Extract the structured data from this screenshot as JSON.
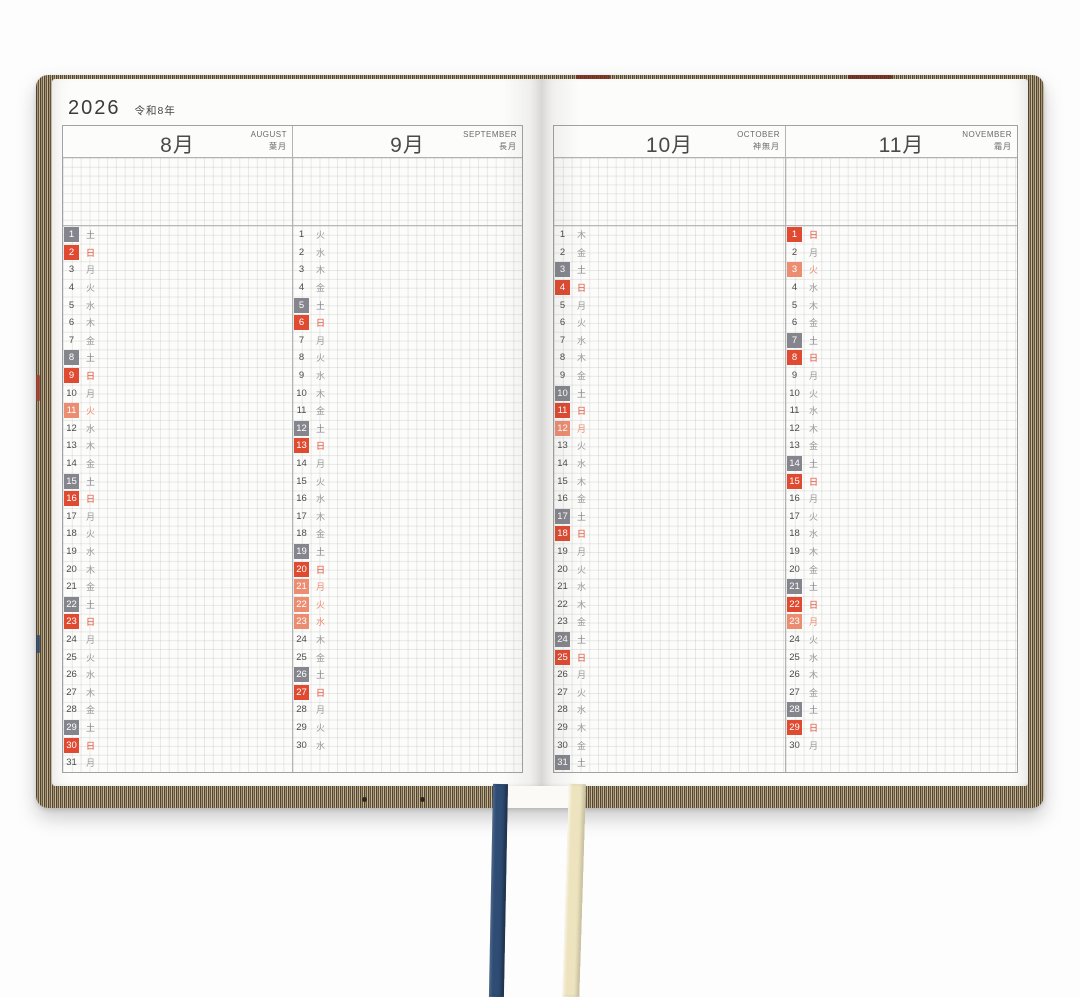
{
  "year": {
    "gregorian": "2026",
    "era": "令和8年"
  },
  "colors": {
    "saturday": "#85858D",
    "sunday": "#DF4A31",
    "holiday": "#EC8D72",
    "ribbon_navy": "#2F4C74",
    "ribbon_cream": "#EDE4BF"
  },
  "months": [
    {
      "num_label": "8月",
      "en_label": "AUGUST",
      "trad_label": "葉月",
      "days": [
        {
          "d": 1,
          "w": "土",
          "t": "sat"
        },
        {
          "d": 2,
          "w": "日",
          "t": "sun"
        },
        {
          "d": 3,
          "w": "月",
          "t": ""
        },
        {
          "d": 4,
          "w": "火",
          "t": ""
        },
        {
          "d": 5,
          "w": "水",
          "t": ""
        },
        {
          "d": 6,
          "w": "木",
          "t": ""
        },
        {
          "d": 7,
          "w": "金",
          "t": ""
        },
        {
          "d": 8,
          "w": "土",
          "t": "sat"
        },
        {
          "d": 9,
          "w": "日",
          "t": "sun"
        },
        {
          "d": 10,
          "w": "月",
          "t": ""
        },
        {
          "d": 11,
          "w": "火",
          "t": "hol"
        },
        {
          "d": 12,
          "w": "水",
          "t": ""
        },
        {
          "d": 13,
          "w": "木",
          "t": ""
        },
        {
          "d": 14,
          "w": "金",
          "t": ""
        },
        {
          "d": 15,
          "w": "土",
          "t": "sat"
        },
        {
          "d": 16,
          "w": "日",
          "t": "sun"
        },
        {
          "d": 17,
          "w": "月",
          "t": ""
        },
        {
          "d": 18,
          "w": "火",
          "t": ""
        },
        {
          "d": 19,
          "w": "水",
          "t": ""
        },
        {
          "d": 20,
          "w": "木",
          "t": ""
        },
        {
          "d": 21,
          "w": "金",
          "t": ""
        },
        {
          "d": 22,
          "w": "土",
          "t": "sat"
        },
        {
          "d": 23,
          "w": "日",
          "t": "sun"
        },
        {
          "d": 24,
          "w": "月",
          "t": ""
        },
        {
          "d": 25,
          "w": "火",
          "t": ""
        },
        {
          "d": 26,
          "w": "水",
          "t": ""
        },
        {
          "d": 27,
          "w": "木",
          "t": ""
        },
        {
          "d": 28,
          "w": "金",
          "t": ""
        },
        {
          "d": 29,
          "w": "土",
          "t": "sat"
        },
        {
          "d": 30,
          "w": "日",
          "t": "sun"
        },
        {
          "d": 31,
          "w": "月",
          "t": ""
        }
      ]
    },
    {
      "num_label": "9月",
      "en_label": "SEPTEMBER",
      "trad_label": "長月",
      "days": [
        {
          "d": 1,
          "w": "火",
          "t": ""
        },
        {
          "d": 2,
          "w": "水",
          "t": ""
        },
        {
          "d": 3,
          "w": "木",
          "t": ""
        },
        {
          "d": 4,
          "w": "金",
          "t": ""
        },
        {
          "d": 5,
          "w": "土",
          "t": "sat"
        },
        {
          "d": 6,
          "w": "日",
          "t": "sun"
        },
        {
          "d": 7,
          "w": "月",
          "t": ""
        },
        {
          "d": 8,
          "w": "火",
          "t": ""
        },
        {
          "d": 9,
          "w": "水",
          "t": ""
        },
        {
          "d": 10,
          "w": "木",
          "t": ""
        },
        {
          "d": 11,
          "w": "金",
          "t": ""
        },
        {
          "d": 12,
          "w": "土",
          "t": "sat"
        },
        {
          "d": 13,
          "w": "日",
          "t": "sun"
        },
        {
          "d": 14,
          "w": "月",
          "t": ""
        },
        {
          "d": 15,
          "w": "火",
          "t": ""
        },
        {
          "d": 16,
          "w": "水",
          "t": ""
        },
        {
          "d": 17,
          "w": "木",
          "t": ""
        },
        {
          "d": 18,
          "w": "金",
          "t": ""
        },
        {
          "d": 19,
          "w": "土",
          "t": "sat"
        },
        {
          "d": 20,
          "w": "日",
          "t": "sun"
        },
        {
          "d": 21,
          "w": "月",
          "t": "hol"
        },
        {
          "d": 22,
          "w": "火",
          "t": "hol"
        },
        {
          "d": 23,
          "w": "水",
          "t": "hol"
        },
        {
          "d": 24,
          "w": "木",
          "t": ""
        },
        {
          "d": 25,
          "w": "金",
          "t": ""
        },
        {
          "d": 26,
          "w": "土",
          "t": "sat"
        },
        {
          "d": 27,
          "w": "日",
          "t": "sun"
        },
        {
          "d": 28,
          "w": "月",
          "t": ""
        },
        {
          "d": 29,
          "w": "火",
          "t": ""
        },
        {
          "d": 30,
          "w": "水",
          "t": ""
        }
      ]
    },
    {
      "num_label": "10月",
      "en_label": "OCTOBER",
      "trad_label": "神無月",
      "days": [
        {
          "d": 1,
          "w": "木",
          "t": ""
        },
        {
          "d": 2,
          "w": "金",
          "t": ""
        },
        {
          "d": 3,
          "w": "土",
          "t": "sat"
        },
        {
          "d": 4,
          "w": "日",
          "t": "sun"
        },
        {
          "d": 5,
          "w": "月",
          "t": ""
        },
        {
          "d": 6,
          "w": "火",
          "t": ""
        },
        {
          "d": 7,
          "w": "水",
          "t": ""
        },
        {
          "d": 8,
          "w": "木",
          "t": ""
        },
        {
          "d": 9,
          "w": "金",
          "t": ""
        },
        {
          "d": 10,
          "w": "土",
          "t": "sat"
        },
        {
          "d": 11,
          "w": "日",
          "t": "sun"
        },
        {
          "d": 12,
          "w": "月",
          "t": "hol"
        },
        {
          "d": 13,
          "w": "火",
          "t": ""
        },
        {
          "d": 14,
          "w": "水",
          "t": ""
        },
        {
          "d": 15,
          "w": "木",
          "t": ""
        },
        {
          "d": 16,
          "w": "金",
          "t": ""
        },
        {
          "d": 17,
          "w": "土",
          "t": "sat"
        },
        {
          "d": 18,
          "w": "日",
          "t": "sun"
        },
        {
          "d": 19,
          "w": "月",
          "t": ""
        },
        {
          "d": 20,
          "w": "火",
          "t": ""
        },
        {
          "d": 21,
          "w": "水",
          "t": ""
        },
        {
          "d": 22,
          "w": "木",
          "t": ""
        },
        {
          "d": 23,
          "w": "金",
          "t": ""
        },
        {
          "d": 24,
          "w": "土",
          "t": "sat"
        },
        {
          "d": 25,
          "w": "日",
          "t": "sun"
        },
        {
          "d": 26,
          "w": "月",
          "t": ""
        },
        {
          "d": 27,
          "w": "火",
          "t": ""
        },
        {
          "d": 28,
          "w": "水",
          "t": ""
        },
        {
          "d": 29,
          "w": "木",
          "t": ""
        },
        {
          "d": 30,
          "w": "金",
          "t": ""
        },
        {
          "d": 31,
          "w": "土",
          "t": "sat"
        }
      ]
    },
    {
      "num_label": "11月",
      "en_label": "NOVEMBER",
      "trad_label": "霜月",
      "days": [
        {
          "d": 1,
          "w": "日",
          "t": "sun"
        },
        {
          "d": 2,
          "w": "月",
          "t": ""
        },
        {
          "d": 3,
          "w": "火",
          "t": "hol"
        },
        {
          "d": 4,
          "w": "水",
          "t": ""
        },
        {
          "d": 5,
          "w": "木",
          "t": ""
        },
        {
          "d": 6,
          "w": "金",
          "t": ""
        },
        {
          "d": 7,
          "w": "土",
          "t": "sat"
        },
        {
          "d": 8,
          "w": "日",
          "t": "sun"
        },
        {
          "d": 9,
          "w": "月",
          "t": ""
        },
        {
          "d": 10,
          "w": "火",
          "t": ""
        },
        {
          "d": 11,
          "w": "水",
          "t": ""
        },
        {
          "d": 12,
          "w": "木",
          "t": ""
        },
        {
          "d": 13,
          "w": "金",
          "t": ""
        },
        {
          "d": 14,
          "w": "土",
          "t": "sat"
        },
        {
          "d": 15,
          "w": "日",
          "t": "sun"
        },
        {
          "d": 16,
          "w": "月",
          "t": ""
        },
        {
          "d": 17,
          "w": "火",
          "t": ""
        },
        {
          "d": 18,
          "w": "水",
          "t": ""
        },
        {
          "d": 19,
          "w": "木",
          "t": ""
        },
        {
          "d": 20,
          "w": "金",
          "t": ""
        },
        {
          "d": 21,
          "w": "土",
          "t": "sat"
        },
        {
          "d": 22,
          "w": "日",
          "t": "sun"
        },
        {
          "d": 23,
          "w": "月",
          "t": "hol"
        },
        {
          "d": 24,
          "w": "火",
          "t": ""
        },
        {
          "d": 25,
          "w": "水",
          "t": ""
        },
        {
          "d": 26,
          "w": "木",
          "t": ""
        },
        {
          "d": 27,
          "w": "金",
          "t": ""
        },
        {
          "d": 28,
          "w": "土",
          "t": "sat"
        },
        {
          "d": 29,
          "w": "日",
          "t": "sun"
        },
        {
          "d": 30,
          "w": "月",
          "t": ""
        }
      ]
    }
  ]
}
